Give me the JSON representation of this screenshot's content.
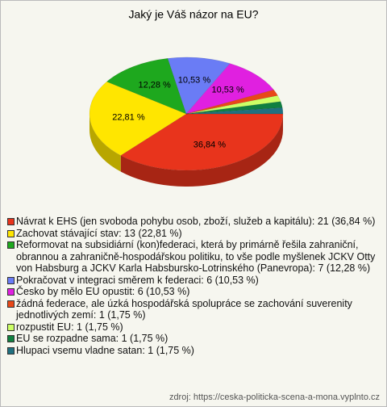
{
  "chart_data": {
    "type": "pie",
    "title": "Jaký je Váš názor na EU?",
    "categories": [
      "Návrat k EHS (jen svoboda pohybu osob, zboží, služeb a kapitálu): 21 (36,84 %)",
      "Zachovat stávající stav: 13 (22,81 %)",
      "Reformovat na subsidiární (kon)federaci, která by primárně řešila zahraniční, obrannou a zahraničně-hospodářskou politiku, to vše podle myšlenek JCKV Otty von Habsburg a JCKV Karla Habsbursko-Lotrinského (Panevropa): 7 (12,28 %)",
      "Pokračovat v integraci směrem k federaci: 6 (10,53 %)",
      "Česko by mělo EU opustit: 6 (10,53 %)",
      "žádná federace, ale úzká hospodářská spolupráce se zachování suverenity jednotlivých zemí: 1 (1,75 %)",
      "rozpustit EU: 1 (1,75 %)",
      "EU se rozpadne sama: 1 (1,75 %)",
      "Hlupaci vsemu vladne satan: 1 (1,75 %)"
    ],
    "values": [
      36.84,
      22.81,
      12.28,
      10.53,
      10.53,
      1.75,
      1.75,
      1.75,
      1.75
    ],
    "value_labels": [
      "36,84 %",
      "22,81 %",
      "12,28 %",
      "10,53 %",
      "10,53 %",
      null,
      null,
      null,
      null
    ],
    "colors": [
      "#e8341c",
      "#ffe600",
      "#1ea81e",
      "#6a7cf5",
      "#e020e0",
      "#e84818",
      "#ccff66",
      "#108040",
      "#207080"
    ],
    "source": "zdroj: https://ceska-politicka-scena-a-mona.vyplnto.cz"
  }
}
